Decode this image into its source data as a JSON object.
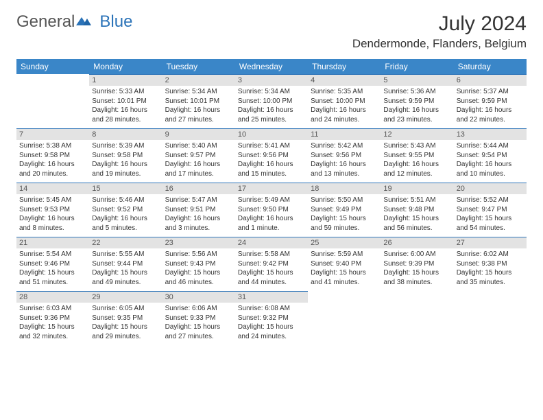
{
  "logo": {
    "general": "General",
    "blue": "Blue"
  },
  "title": {
    "month_year": "July 2024",
    "location": "Dendermonde, Flanders, Belgium"
  },
  "colors": {
    "header_bg": "#3a86c8",
    "header_text": "#ffffff",
    "daynum_bg": "#e3e3e3",
    "cell_border": "#2b73b8",
    "logo_gray": "#555555",
    "logo_blue": "#2b73b8",
    "body_text": "#333333",
    "page_bg": "#ffffff"
  },
  "typography": {
    "body_font": "Arial",
    "title_fontsize": 30,
    "location_fontsize": 17,
    "header_fontsize": 12,
    "daynum_fontsize": 11,
    "cell_fontsize": 10
  },
  "day_headers": [
    "Sunday",
    "Monday",
    "Tuesday",
    "Wednesday",
    "Thursday",
    "Friday",
    "Saturday"
  ],
  "weeks": [
    [
      {
        "blank": true
      },
      {
        "n": "1",
        "sr": "Sunrise: 5:33 AM",
        "ss": "Sunset: 10:01 PM",
        "dl1": "Daylight: 16 hours",
        "dl2": "and 28 minutes."
      },
      {
        "n": "2",
        "sr": "Sunrise: 5:34 AM",
        "ss": "Sunset: 10:01 PM",
        "dl1": "Daylight: 16 hours",
        "dl2": "and 27 minutes."
      },
      {
        "n": "3",
        "sr": "Sunrise: 5:34 AM",
        "ss": "Sunset: 10:00 PM",
        "dl1": "Daylight: 16 hours",
        "dl2": "and 25 minutes."
      },
      {
        "n": "4",
        "sr": "Sunrise: 5:35 AM",
        "ss": "Sunset: 10:00 PM",
        "dl1": "Daylight: 16 hours",
        "dl2": "and 24 minutes."
      },
      {
        "n": "5",
        "sr": "Sunrise: 5:36 AM",
        "ss": "Sunset: 9:59 PM",
        "dl1": "Daylight: 16 hours",
        "dl2": "and 23 minutes."
      },
      {
        "n": "6",
        "sr": "Sunrise: 5:37 AM",
        "ss": "Sunset: 9:59 PM",
        "dl1": "Daylight: 16 hours",
        "dl2": "and 22 minutes."
      }
    ],
    [
      {
        "n": "7",
        "sr": "Sunrise: 5:38 AM",
        "ss": "Sunset: 9:58 PM",
        "dl1": "Daylight: 16 hours",
        "dl2": "and 20 minutes."
      },
      {
        "n": "8",
        "sr": "Sunrise: 5:39 AM",
        "ss": "Sunset: 9:58 PM",
        "dl1": "Daylight: 16 hours",
        "dl2": "and 19 minutes."
      },
      {
        "n": "9",
        "sr": "Sunrise: 5:40 AM",
        "ss": "Sunset: 9:57 PM",
        "dl1": "Daylight: 16 hours",
        "dl2": "and 17 minutes."
      },
      {
        "n": "10",
        "sr": "Sunrise: 5:41 AM",
        "ss": "Sunset: 9:56 PM",
        "dl1": "Daylight: 16 hours",
        "dl2": "and 15 minutes."
      },
      {
        "n": "11",
        "sr": "Sunrise: 5:42 AM",
        "ss": "Sunset: 9:56 PM",
        "dl1": "Daylight: 16 hours",
        "dl2": "and 13 minutes."
      },
      {
        "n": "12",
        "sr": "Sunrise: 5:43 AM",
        "ss": "Sunset: 9:55 PM",
        "dl1": "Daylight: 16 hours",
        "dl2": "and 12 minutes."
      },
      {
        "n": "13",
        "sr": "Sunrise: 5:44 AM",
        "ss": "Sunset: 9:54 PM",
        "dl1": "Daylight: 16 hours",
        "dl2": "and 10 minutes."
      }
    ],
    [
      {
        "n": "14",
        "sr": "Sunrise: 5:45 AM",
        "ss": "Sunset: 9:53 PM",
        "dl1": "Daylight: 16 hours",
        "dl2": "and 8 minutes."
      },
      {
        "n": "15",
        "sr": "Sunrise: 5:46 AM",
        "ss": "Sunset: 9:52 PM",
        "dl1": "Daylight: 16 hours",
        "dl2": "and 5 minutes."
      },
      {
        "n": "16",
        "sr": "Sunrise: 5:47 AM",
        "ss": "Sunset: 9:51 PM",
        "dl1": "Daylight: 16 hours",
        "dl2": "and 3 minutes."
      },
      {
        "n": "17",
        "sr": "Sunrise: 5:49 AM",
        "ss": "Sunset: 9:50 PM",
        "dl1": "Daylight: 16 hours",
        "dl2": "and 1 minute."
      },
      {
        "n": "18",
        "sr": "Sunrise: 5:50 AM",
        "ss": "Sunset: 9:49 PM",
        "dl1": "Daylight: 15 hours",
        "dl2": "and 59 minutes."
      },
      {
        "n": "19",
        "sr": "Sunrise: 5:51 AM",
        "ss": "Sunset: 9:48 PM",
        "dl1": "Daylight: 15 hours",
        "dl2": "and 56 minutes."
      },
      {
        "n": "20",
        "sr": "Sunrise: 5:52 AM",
        "ss": "Sunset: 9:47 PM",
        "dl1": "Daylight: 15 hours",
        "dl2": "and 54 minutes."
      }
    ],
    [
      {
        "n": "21",
        "sr": "Sunrise: 5:54 AM",
        "ss": "Sunset: 9:46 PM",
        "dl1": "Daylight: 15 hours",
        "dl2": "and 51 minutes."
      },
      {
        "n": "22",
        "sr": "Sunrise: 5:55 AM",
        "ss": "Sunset: 9:44 PM",
        "dl1": "Daylight: 15 hours",
        "dl2": "and 49 minutes."
      },
      {
        "n": "23",
        "sr": "Sunrise: 5:56 AM",
        "ss": "Sunset: 9:43 PM",
        "dl1": "Daylight: 15 hours",
        "dl2": "and 46 minutes."
      },
      {
        "n": "24",
        "sr": "Sunrise: 5:58 AM",
        "ss": "Sunset: 9:42 PM",
        "dl1": "Daylight: 15 hours",
        "dl2": "and 44 minutes."
      },
      {
        "n": "25",
        "sr": "Sunrise: 5:59 AM",
        "ss": "Sunset: 9:40 PM",
        "dl1": "Daylight: 15 hours",
        "dl2": "and 41 minutes."
      },
      {
        "n": "26",
        "sr": "Sunrise: 6:00 AM",
        "ss": "Sunset: 9:39 PM",
        "dl1": "Daylight: 15 hours",
        "dl2": "and 38 minutes."
      },
      {
        "n": "27",
        "sr": "Sunrise: 6:02 AM",
        "ss": "Sunset: 9:38 PM",
        "dl1": "Daylight: 15 hours",
        "dl2": "and 35 minutes."
      }
    ],
    [
      {
        "n": "28",
        "sr": "Sunrise: 6:03 AM",
        "ss": "Sunset: 9:36 PM",
        "dl1": "Daylight: 15 hours",
        "dl2": "and 32 minutes."
      },
      {
        "n": "29",
        "sr": "Sunrise: 6:05 AM",
        "ss": "Sunset: 9:35 PM",
        "dl1": "Daylight: 15 hours",
        "dl2": "and 29 minutes."
      },
      {
        "n": "30",
        "sr": "Sunrise: 6:06 AM",
        "ss": "Sunset: 9:33 PM",
        "dl1": "Daylight: 15 hours",
        "dl2": "and 27 minutes."
      },
      {
        "n": "31",
        "sr": "Sunrise: 6:08 AM",
        "ss": "Sunset: 9:32 PM",
        "dl1": "Daylight: 15 hours",
        "dl2": "and 24 minutes."
      },
      {
        "blank": true
      },
      {
        "blank": true
      },
      {
        "blank": true
      }
    ]
  ]
}
